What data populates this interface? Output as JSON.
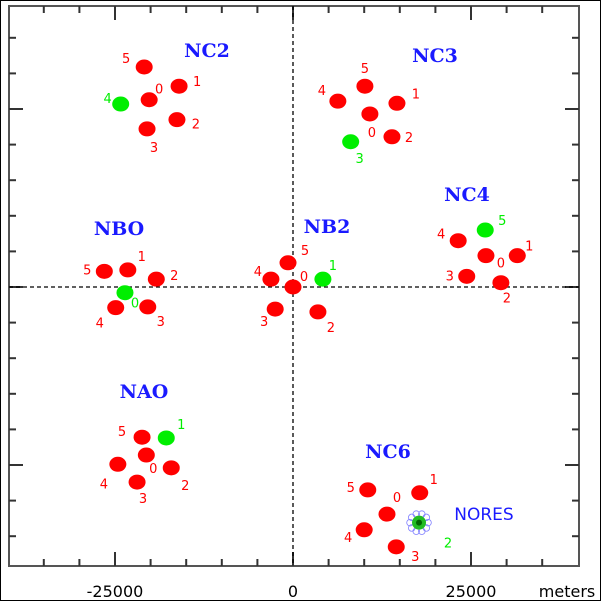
{
  "chart_data": {
    "type": "scatter",
    "title": "",
    "xlabel": "meters",
    "ylabel": "",
    "xlim": [
      -40000,
      40000
    ],
    "ylim": [
      -39500,
      39500
    ],
    "x_tick_labels": [
      "-25000",
      "0",
      "25000"
    ],
    "x_ticks": [
      -25000,
      0,
      25000
    ],
    "tick_interval": 5000,
    "grid": false,
    "reference_lines": "dashed x=0 and y=0",
    "colors": {
      "element": "#ff0000",
      "highlight": "#00ee00",
      "station_label": "#1a1aff",
      "nores": "#1a1aff"
    },
    "stations": [
      {
        "name": "NC2",
        "highlight": "4",
        "elements": [
          {
            "id": "5",
            "x": -20900,
            "y": 30900
          },
          {
            "id": "1",
            "x": -16000,
            "y": 28200
          },
          {
            "id": "0",
            "x": -20200,
            "y": 26300
          },
          {
            "id": "4",
            "x": -24200,
            "y": 25700
          },
          {
            "id": "2",
            "x": -16300,
            "y": 23500
          },
          {
            "id": "3",
            "x": -20500,
            "y": 22200
          }
        ]
      },
      {
        "name": "NC3",
        "highlight": "3",
        "elements": [
          {
            "id": "5",
            "x": 10100,
            "y": 28200
          },
          {
            "id": "4",
            "x": 6300,
            "y": 26100
          },
          {
            "id": "1",
            "x": 14600,
            "y": 25800
          },
          {
            "id": "0",
            "x": 10800,
            "y": 24300
          },
          {
            "id": "2",
            "x": 13900,
            "y": 21100
          },
          {
            "id": "3",
            "x": 8100,
            "y": 20400
          }
        ]
      },
      {
        "name": "NC4",
        "highlight": "5",
        "elements": [
          {
            "id": "5",
            "x": 27000,
            "y": 8000
          },
          {
            "id": "4",
            "x": 23200,
            "y": 6500
          },
          {
            "id": "1",
            "x": 31500,
            "y": 4400
          },
          {
            "id": "0",
            "x": 27100,
            "y": 4400
          },
          {
            "id": "3",
            "x": 24400,
            "y": 1500
          },
          {
            "id": "2",
            "x": 29200,
            "y": 600
          }
        ]
      },
      {
        "name": "NBO",
        "highlight": "0",
        "elements": [
          {
            "id": "5",
            "x": -26500,
            "y": 2200
          },
          {
            "id": "1",
            "x": -23200,
            "y": 2400
          },
          {
            "id": "2",
            "x": -19200,
            "y": 1100
          },
          {
            "id": "0",
            "x": -23600,
            "y": -800
          },
          {
            "id": "4",
            "x": -24900,
            "y": -2900
          },
          {
            "id": "3",
            "x": -20400,
            "y": -2800
          }
        ]
      },
      {
        "name": "NB2",
        "highlight": "1",
        "elements": [
          {
            "id": "5",
            "x": -700,
            "y": 3400
          },
          {
            "id": "4",
            "x": -3100,
            "y": 1100
          },
          {
            "id": "1",
            "x": 4200,
            "y": 1100
          },
          {
            "id": "0",
            "x": 0,
            "y": 0
          },
          {
            "id": "3",
            "x": -2500,
            "y": -3100
          },
          {
            "id": "2",
            "x": 3500,
            "y": -3500
          }
        ]
      },
      {
        "name": "NAO",
        "highlight": "1",
        "elements": [
          {
            "id": "5",
            "x": -21200,
            "y": -21100
          },
          {
            "id": "1",
            "x": -17800,
            "y": -21200
          },
          {
            "id": "0",
            "x": -20600,
            "y": -23600
          },
          {
            "id": "4",
            "x": -24600,
            "y": -24900
          },
          {
            "id": "2",
            "x": -17100,
            "y": -25400
          },
          {
            "id": "3",
            "x": -21900,
            "y": -27400
          }
        ]
      },
      {
        "name": "NC6",
        "highlight": "2",
        "elements": [
          {
            "id": "5",
            "x": 10500,
            "y": -28500
          },
          {
            "id": "1",
            "x": 17800,
            "y": -28900
          },
          {
            "id": "0",
            "x": 13200,
            "y": -31900
          },
          {
            "id": "4",
            "x": 10000,
            "y": -34100
          },
          {
            "id": "3",
            "x": 14500,
            "y": -36500
          },
          {
            "id": "2",
            "x": 17700,
            "y": -33100
          }
        ]
      }
    ],
    "annotations": [
      {
        "text": "NORES",
        "x": 17700,
        "y": -33100
      }
    ]
  }
}
